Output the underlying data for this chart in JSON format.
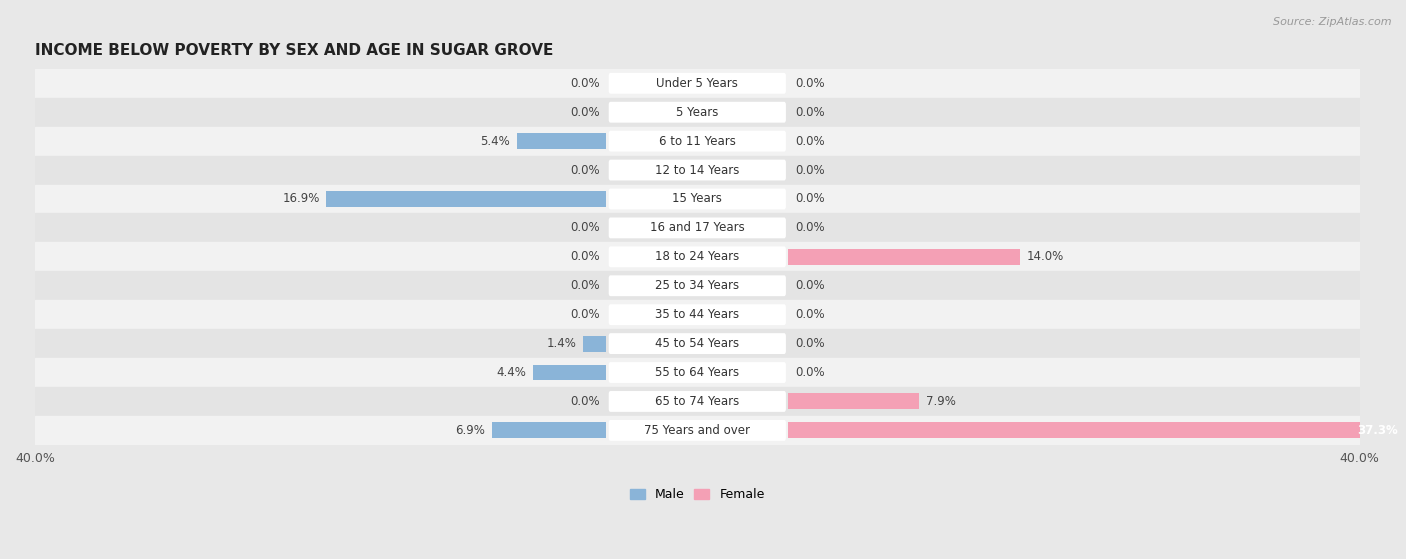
{
  "title": "INCOME BELOW POVERTY BY SEX AND AGE IN SUGAR GROVE",
  "source": "Source: ZipAtlas.com",
  "categories": [
    "Under 5 Years",
    "5 Years",
    "6 to 11 Years",
    "12 to 14 Years",
    "15 Years",
    "16 and 17 Years",
    "18 to 24 Years",
    "25 to 34 Years",
    "35 to 44 Years",
    "45 to 54 Years",
    "55 to 64 Years",
    "65 to 74 Years",
    "75 Years and over"
  ],
  "male": [
    0.0,
    0.0,
    5.4,
    0.0,
    16.9,
    0.0,
    0.0,
    0.0,
    0.0,
    1.4,
    4.4,
    0.0,
    6.9
  ],
  "female": [
    0.0,
    0.0,
    0.0,
    0.0,
    0.0,
    0.0,
    14.0,
    0.0,
    0.0,
    0.0,
    0.0,
    7.9,
    37.3
  ],
  "male_color": "#8ab4d8",
  "female_color": "#f4a0b5",
  "male_label": "Male",
  "female_label": "Female",
  "axis_max": 40.0,
  "bg_color": "#e8e8e8",
  "row_odd_color": "#f2f2f2",
  "row_even_color": "#e4e4e4",
  "title_fontsize": 11,
  "label_fontsize": 8.5,
  "tick_fontsize": 9,
  "source_fontsize": 8,
  "value_fontsize": 8.5
}
